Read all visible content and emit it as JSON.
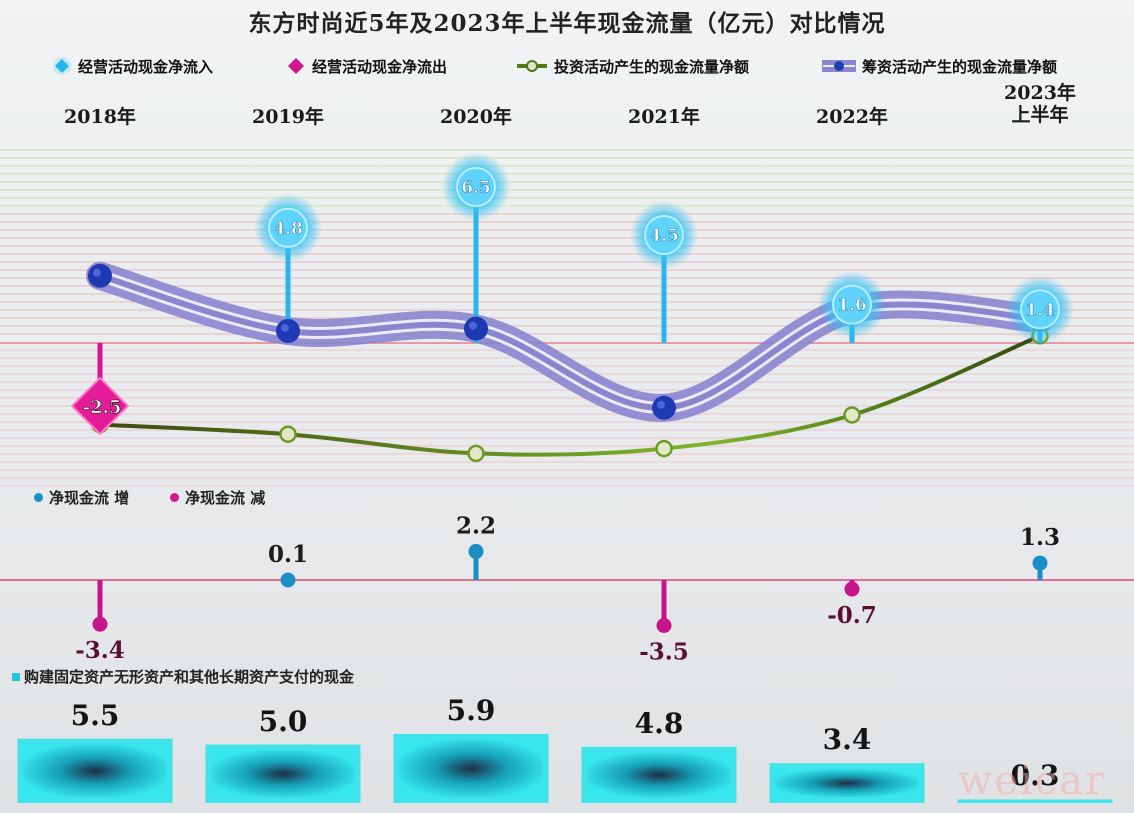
{
  "chart_data": {
    "title": "东方时尚近5年及2023年上半年现金流量（亿元）对比情况",
    "categories": [
      "2018年",
      "2019年",
      "2020年",
      "2021年",
      "2022年",
      "2023年上半年"
    ],
    "category_labels": [
      [
        "2018年"
      ],
      [
        "2019年"
      ],
      [
        "2020年"
      ],
      [
        "2021年"
      ],
      [
        "2022年"
      ],
      [
        "2023年",
        "上半年"
      ]
    ],
    "upper_panel": {
      "type": "line",
      "legend_position": "top",
      "series": [
        {
          "name": "经营活动现金净流入",
          "type": "lollipop",
          "color": "#29b6ea",
          "values": [
            null,
            4.8,
            6.5,
            4.5,
            1.6,
            1.4
          ]
        },
        {
          "name": "经营活动现金净流出",
          "type": "lollipop",
          "color": "#d4168e",
          "values": [
            -2.5,
            null,
            null,
            null,
            null,
            null
          ]
        },
        {
          "name": "投资活动产生的现金流量净额",
          "type": "line",
          "color": "#4f7a14",
          "values": [
            -3.4,
            -3.8,
            -4.6,
            -4.4,
            -3.0,
            0.3
          ]
        },
        {
          "name": "筹资活动产生的现金流量净额",
          "type": "line",
          "color": "#1f3fb0",
          "values": [
            2.8,
            0.5,
            0.6,
            -2.7,
            1.4,
            1.0
          ]
        }
      ]
    },
    "middle_panel": {
      "type": "lollipop",
      "legend": [
        {
          "name": "净现金流 增",
          "color": "#1a8fc5"
        },
        {
          "name": "净现金流 减",
          "color": "#d4168e"
        }
      ],
      "values": [
        -3.4,
        0.1,
        2.2,
        -3.5,
        -0.7,
        1.3
      ],
      "labels": [
        "-3.4",
        "0.1",
        "2.2",
        "-3.5",
        "-0.7",
        "1.3"
      ]
    },
    "lower_panel": {
      "type": "bar",
      "name": "购建固定资产无形资产和其他长期资产支付的现金",
      "color": "#22c6d6",
      "values": [
        5.5,
        5.0,
        5.9,
        4.8,
        3.4,
        0.3
      ],
      "labels": [
        "5.5",
        "5.0",
        "5.9",
        "4.8",
        "3.4",
        "0.3"
      ]
    }
  },
  "inflow_labels": [
    "",
    "4.8",
    "6.5",
    "4.5",
    "1.6",
    "1.4"
  ],
  "outflow_labels": [
    "-2.5",
    "",
    "",
    "",
    "",
    ""
  ],
  "watermark": "weicar"
}
